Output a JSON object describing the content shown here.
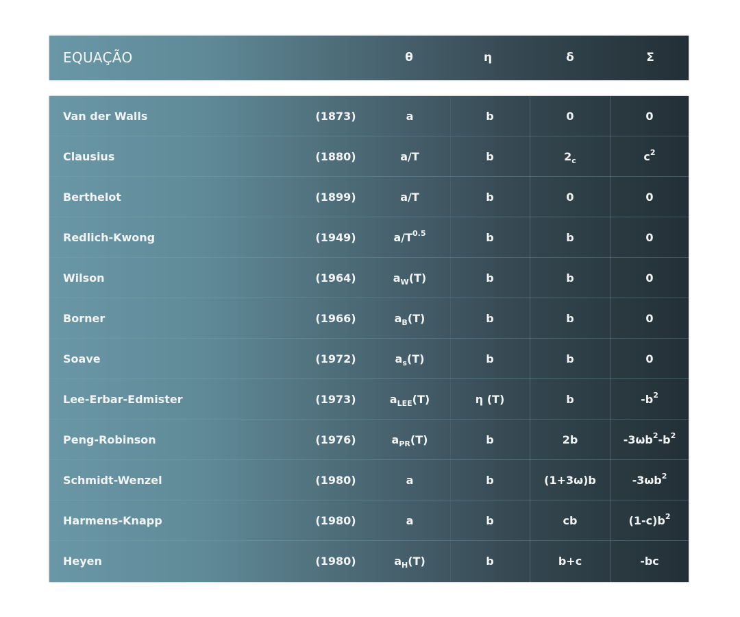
{
  "header": {
    "title": "EQUAÇÃO",
    "theta": "θ",
    "eta": "η",
    "delta": "δ",
    "sigma": "Σ"
  },
  "colors": {
    "gradient_left": "#6a97a6",
    "gradient_right": "#232f36",
    "text": "#f2f5f6"
  },
  "rows": [
    {
      "name": "Van der Walls",
      "year": "(1873)",
      "theta": [
        {
          "text": "a",
          "pos": ""
        }
      ],
      "eta": [
        {
          "text": "b",
          "pos": ""
        }
      ],
      "delta": [
        {
          "text": "0",
          "pos": ""
        }
      ],
      "sigma": [
        {
          "text": "0",
          "pos": ""
        }
      ]
    },
    {
      "name": "Clausius",
      "year": "(1880)",
      "theta": [
        {
          "text": "a/T",
          "pos": ""
        }
      ],
      "eta": [
        {
          "text": "b",
          "pos": ""
        }
      ],
      "delta": [
        {
          "text": "2",
          "pos": ""
        },
        {
          "text": "c",
          "pos": "sub"
        }
      ],
      "sigma": [
        {
          "text": "c",
          "pos": ""
        },
        {
          "text": "2",
          "pos": "sup"
        }
      ]
    },
    {
      "name": "Berthelot",
      "year": "(1899)",
      "theta": [
        {
          "text": "a/T",
          "pos": ""
        }
      ],
      "eta": [
        {
          "text": "b",
          "pos": ""
        }
      ],
      "delta": [
        {
          "text": "0",
          "pos": ""
        }
      ],
      "sigma": [
        {
          "text": "0",
          "pos": ""
        }
      ]
    },
    {
      "name": "Redlich-Kwong",
      "year": "(1949)",
      "theta": [
        {
          "text": "a/T",
          "pos": ""
        },
        {
          "text": "0.5",
          "pos": "sup"
        }
      ],
      "eta": [
        {
          "text": "b",
          "pos": ""
        }
      ],
      "delta": [
        {
          "text": "b",
          "pos": ""
        }
      ],
      "sigma": [
        {
          "text": "0",
          "pos": ""
        }
      ]
    },
    {
      "name": "Wilson",
      "year": "(1964)",
      "theta": [
        {
          "text": "a",
          "pos": ""
        },
        {
          "text": "W",
          "pos": "sub"
        },
        {
          "text": "(T)",
          "pos": ""
        }
      ],
      "eta": [
        {
          "text": "b",
          "pos": ""
        }
      ],
      "delta": [
        {
          "text": "b",
          "pos": ""
        }
      ],
      "sigma": [
        {
          "text": "0",
          "pos": ""
        }
      ]
    },
    {
      "name": "Borner",
      "year": "(1966)",
      "theta": [
        {
          "text": "a",
          "pos": ""
        },
        {
          "text": "B",
          "pos": "sub"
        },
        {
          "text": "(T)",
          "pos": ""
        }
      ],
      "eta": [
        {
          "text": "b",
          "pos": ""
        }
      ],
      "delta": [
        {
          "text": "b",
          "pos": ""
        }
      ],
      "sigma": [
        {
          "text": "0",
          "pos": ""
        }
      ]
    },
    {
      "name": "Soave",
      "year": "(1972)",
      "theta": [
        {
          "text": "a",
          "pos": ""
        },
        {
          "text": "s",
          "pos": "sub"
        },
        {
          "text": "(T)",
          "pos": ""
        }
      ],
      "eta": [
        {
          "text": "b",
          "pos": ""
        }
      ],
      "delta": [
        {
          "text": "b",
          "pos": ""
        }
      ],
      "sigma": [
        {
          "text": "0",
          "pos": ""
        }
      ]
    },
    {
      "name": "Lee-Erbar-Edmister",
      "year": "(1973)",
      "theta": [
        {
          "text": "a",
          "pos": ""
        },
        {
          "text": "LEE",
          "pos": "sub"
        },
        {
          "text": "(T)",
          "pos": ""
        }
      ],
      "eta": [
        {
          "text": "η (T)",
          "pos": ""
        }
      ],
      "delta": [
        {
          "text": "b",
          "pos": ""
        }
      ],
      "sigma": [
        {
          "text": "-b",
          "pos": ""
        },
        {
          "text": "2",
          "pos": "sup"
        }
      ]
    },
    {
      "name": "Peng-Robinson",
      "year": "(1976)",
      "theta": [
        {
          "text": "a",
          "pos": ""
        },
        {
          "text": "PR",
          "pos": "sub"
        },
        {
          "text": "(T)",
          "pos": ""
        }
      ],
      "eta": [
        {
          "text": "b",
          "pos": ""
        }
      ],
      "delta": [
        {
          "text": "2b",
          "pos": ""
        }
      ],
      "sigma": [
        {
          "text": "-3ωb",
          "pos": ""
        },
        {
          "text": "2",
          "pos": "sup"
        },
        {
          "text": "-b",
          "pos": ""
        },
        {
          "text": "2",
          "pos": "sup"
        }
      ]
    },
    {
      "name": "Schmidt-Wenzel",
      "year": "(1980)",
      "theta": [
        {
          "text": "a",
          "pos": ""
        }
      ],
      "eta": [
        {
          "text": "b",
          "pos": ""
        }
      ],
      "delta": [
        {
          "text": "(1+3ω)b",
          "pos": ""
        }
      ],
      "sigma": [
        {
          "text": "-3ωb",
          "pos": ""
        },
        {
          "text": "2",
          "pos": "sup"
        }
      ]
    },
    {
      "name": "Harmens-Knapp",
      "year": "(1980)",
      "theta": [
        {
          "text": "a",
          "pos": ""
        }
      ],
      "eta": [
        {
          "text": "b",
          "pos": ""
        }
      ],
      "delta": [
        {
          "text": "cb",
          "pos": ""
        }
      ],
      "sigma": [
        {
          "text": "(1-c)b",
          "pos": ""
        },
        {
          "text": "2",
          "pos": "sup"
        }
      ]
    },
    {
      "name": "Heyen",
      "year": "(1980)",
      "theta": [
        {
          "text": "a",
          "pos": ""
        },
        {
          "text": "H",
          "pos": "sub"
        },
        {
          "text": "(T)",
          "pos": ""
        }
      ],
      "eta": [
        {
          "text": "b",
          "pos": ""
        }
      ],
      "delta": [
        {
          "text": "b+c",
          "pos": ""
        }
      ],
      "sigma": [
        {
          "text": "-bc",
          "pos": ""
        }
      ]
    }
  ]
}
